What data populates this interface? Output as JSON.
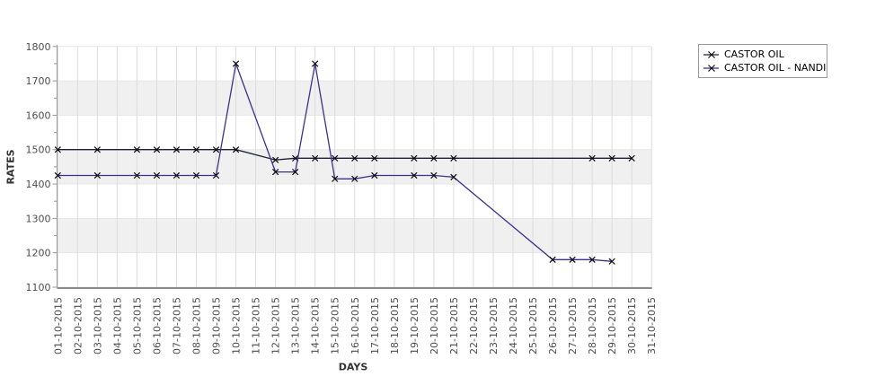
{
  "chart_data": {
    "type": "line",
    "title": "",
    "xlabel": "DAYS",
    "ylabel": "RATES",
    "ylim": [
      1100,
      1800
    ],
    "y_tick_step": 100,
    "y_minor_tick_step": 50,
    "grid": true,
    "band_colors": [
      "#ffffff",
      "#f0f0f0"
    ],
    "gridline_color": "#dcdcdc",
    "axis_color": "#999999",
    "tick_label_color": "#4d4d4d",
    "marker": "x",
    "marker_color": "#0a0a0a",
    "legend_position": "outside-top-right",
    "x_categories": [
      "01-10-2015",
      "02-10-2015",
      "03-10-2015",
      "04-10-2015",
      "05-10-2015",
      "06-10-2015",
      "07-10-2015",
      "08-10-2015",
      "09-10-2015",
      "10-10-2015",
      "11-10-2015",
      "12-10-2015",
      "13-10-2015",
      "14-10-2015",
      "15-10-2015",
      "16-10-2015",
      "17-10-2015",
      "18-10-2015",
      "19-10-2015",
      "20-10-2015",
      "21-10-2015",
      "22-10-2015",
      "23-10-2015",
      "24-10-2015",
      "25-10-2015",
      "26-10-2015",
      "27-10-2015",
      "28-10-2015",
      "29-10-2015",
      "30-10-2015",
      "31-10-2015"
    ],
    "series": [
      {
        "name": "CASTOR OIL",
        "color": "#1e1e38",
        "points": [
          [
            "01-10-2015",
            1500
          ],
          [
            "03-10-2015",
            1500
          ],
          [
            "05-10-2015",
            1500
          ],
          [
            "06-10-2015",
            1500
          ],
          [
            "07-10-2015",
            1500
          ],
          [
            "08-10-2015",
            1500
          ],
          [
            "09-10-2015",
            1500
          ],
          [
            "10-10-2015",
            1500
          ],
          [
            "12-10-2015",
            1470
          ],
          [
            "13-10-2015",
            1475
          ],
          [
            "14-10-2015",
            1475
          ],
          [
            "15-10-2015",
            1475
          ],
          [
            "16-10-2015",
            1475
          ],
          [
            "17-10-2015",
            1475
          ],
          [
            "19-10-2015",
            1475
          ],
          [
            "20-10-2015",
            1475
          ],
          [
            "21-10-2015",
            1475
          ],
          [
            "28-10-2015",
            1475
          ],
          [
            "29-10-2015",
            1475
          ],
          [
            "30-10-2015",
            1475
          ]
        ]
      },
      {
        "name": "CASTOR OIL - NANDI",
        "color": "#3f2f8a",
        "points": [
          [
            "01-10-2015",
            1425
          ],
          [
            "03-10-2015",
            1425
          ],
          [
            "05-10-2015",
            1425
          ],
          [
            "06-10-2015",
            1425
          ],
          [
            "07-10-2015",
            1425
          ],
          [
            "08-10-2015",
            1425
          ],
          [
            "09-10-2015",
            1425
          ],
          [
            "10-10-2015",
            1750
          ],
          [
            "12-10-2015",
            1435
          ],
          [
            "13-10-2015",
            1435
          ],
          [
            "14-10-2015",
            1750
          ],
          [
            "15-10-2015",
            1415
          ],
          [
            "16-10-2015",
            1415
          ],
          [
            "17-10-2015",
            1425
          ],
          [
            "19-10-2015",
            1425
          ],
          [
            "20-10-2015",
            1425
          ],
          [
            "21-10-2015",
            1420
          ],
          [
            "26-10-2015",
            1180
          ],
          [
            "27-10-2015",
            1180
          ],
          [
            "28-10-2015",
            1180
          ],
          [
            "29-10-2015",
            1175
          ]
        ]
      }
    ]
  }
}
